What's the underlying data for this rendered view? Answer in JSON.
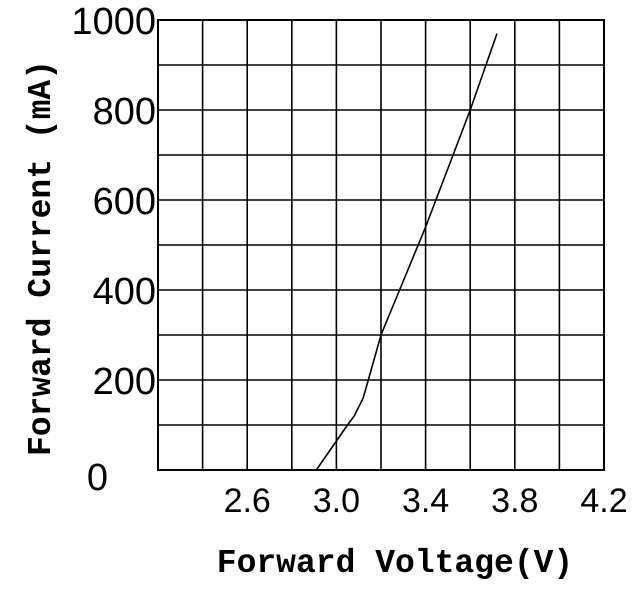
{
  "chart_data": {
    "type": "line",
    "xlabel": "Forward Voltage(V)",
    "ylabel": "Forward  Current (mA)",
    "xlim": [
      2.2,
      4.2
    ],
    "ylim": [
      0,
      1000
    ],
    "x_ticks": [
      "2.6",
      "3.0",
      "3.4",
      "3.8",
      "4.2"
    ],
    "y_ticks": [
      "0",
      "200",
      "400",
      "600",
      "800",
      "1000"
    ],
    "grid": true,
    "series": [
      {
        "x": [
          2.91,
          3.05,
          3.08,
          3.12,
          3.2,
          3.3,
          3.4,
          3.5,
          3.6,
          3.72
        ],
        "y": [
          0,
          100,
          120,
          160,
          300,
          420,
          540,
          670,
          800,
          970
        ]
      }
    ]
  }
}
